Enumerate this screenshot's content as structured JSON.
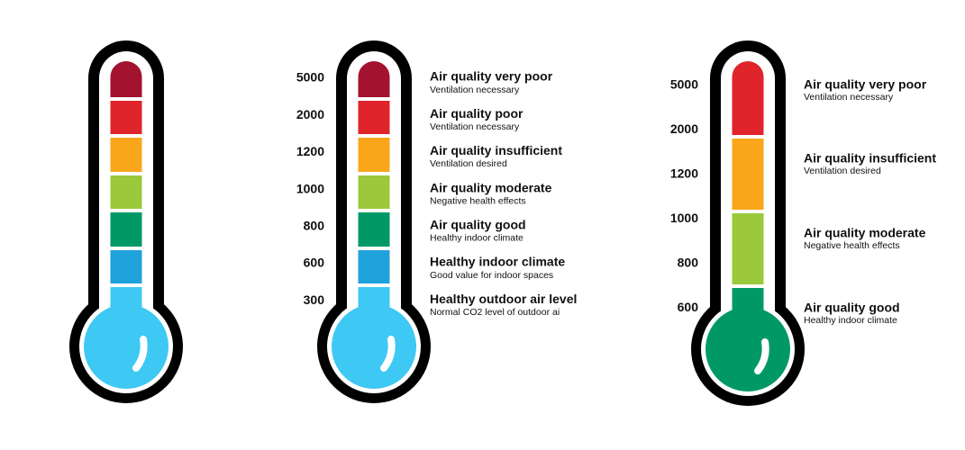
{
  "thermometers": [
    {
      "levels": [
        {
          "color": "#a3122f"
        },
        {
          "color": "#e0242b"
        },
        {
          "color": "#f9a61b"
        },
        {
          "color": "#9bc93b"
        },
        {
          "color": "#009966"
        },
        {
          "color": "#1fa2dc"
        },
        {
          "color": "#3ec8f4"
        }
      ]
    },
    {
      "levels": [
        {
          "value": 5000,
          "title": "Air quality very poor",
          "subtitle": "Ventilation necessary",
          "color": "#a3122f"
        },
        {
          "value": 2000,
          "title": "Air quality poor",
          "subtitle": "Ventilation necessary",
          "color": "#e0242b"
        },
        {
          "value": 1200,
          "title": "Air quality insufficient",
          "subtitle": "Ventilation desired",
          "color": "#f9a61b"
        },
        {
          "value": 1000,
          "title": "Air quality moderate",
          "subtitle": "Negative health effects",
          "color": "#9bc93b"
        },
        {
          "value": 800,
          "title": "Air quality good",
          "subtitle": "Healthy indoor climate",
          "color": "#009966"
        },
        {
          "value": 600,
          "title": "Healthy indoor climate",
          "subtitle": "Good value for indoor spaces",
          "color": "#1fa2dc"
        },
        {
          "value": 300,
          "title": "Healthy outdoor air level",
          "subtitle": "Normal CO2 level of outdoor ai",
          "color": "#3ec8f4"
        }
      ]
    },
    {
      "scale": [
        5000,
        2000,
        1200,
        1000,
        800,
        600
      ],
      "levels": [
        {
          "title": "Air quality very poor",
          "subtitle": "Ventilation necessary",
          "color": "#e0242b"
        },
        {
          "title": "Air quality insufficient",
          "subtitle": "Ventilation desired",
          "color": "#f9a61b"
        },
        {
          "title": "Air quality moderate",
          "subtitle": "Negative health effects",
          "color": "#9bc93b"
        },
        {
          "title": "Air quality good",
          "subtitle": "Healthy indoor climate",
          "color": "#009966"
        }
      ]
    }
  ]
}
